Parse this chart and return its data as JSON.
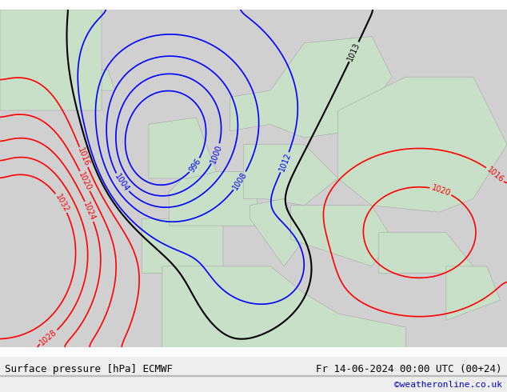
{
  "title_left": "Surface pressure [hPa] ECMWF",
  "title_right": "Fr 14-06-2024 00:00 UTC (00+24)",
  "credit": "©weatheronline.co.uk",
  "bg_color": "#d0d0d0",
  "land_color": "#c8dfc8",
  "sea_color": "#d8d8d8",
  "fig_width": 6.34,
  "fig_height": 4.9,
  "dpi": 100,
  "bottom_bar_color": "#e8e8e8",
  "bottom_text_color": "#000000",
  "credit_color": "#0000cc"
}
